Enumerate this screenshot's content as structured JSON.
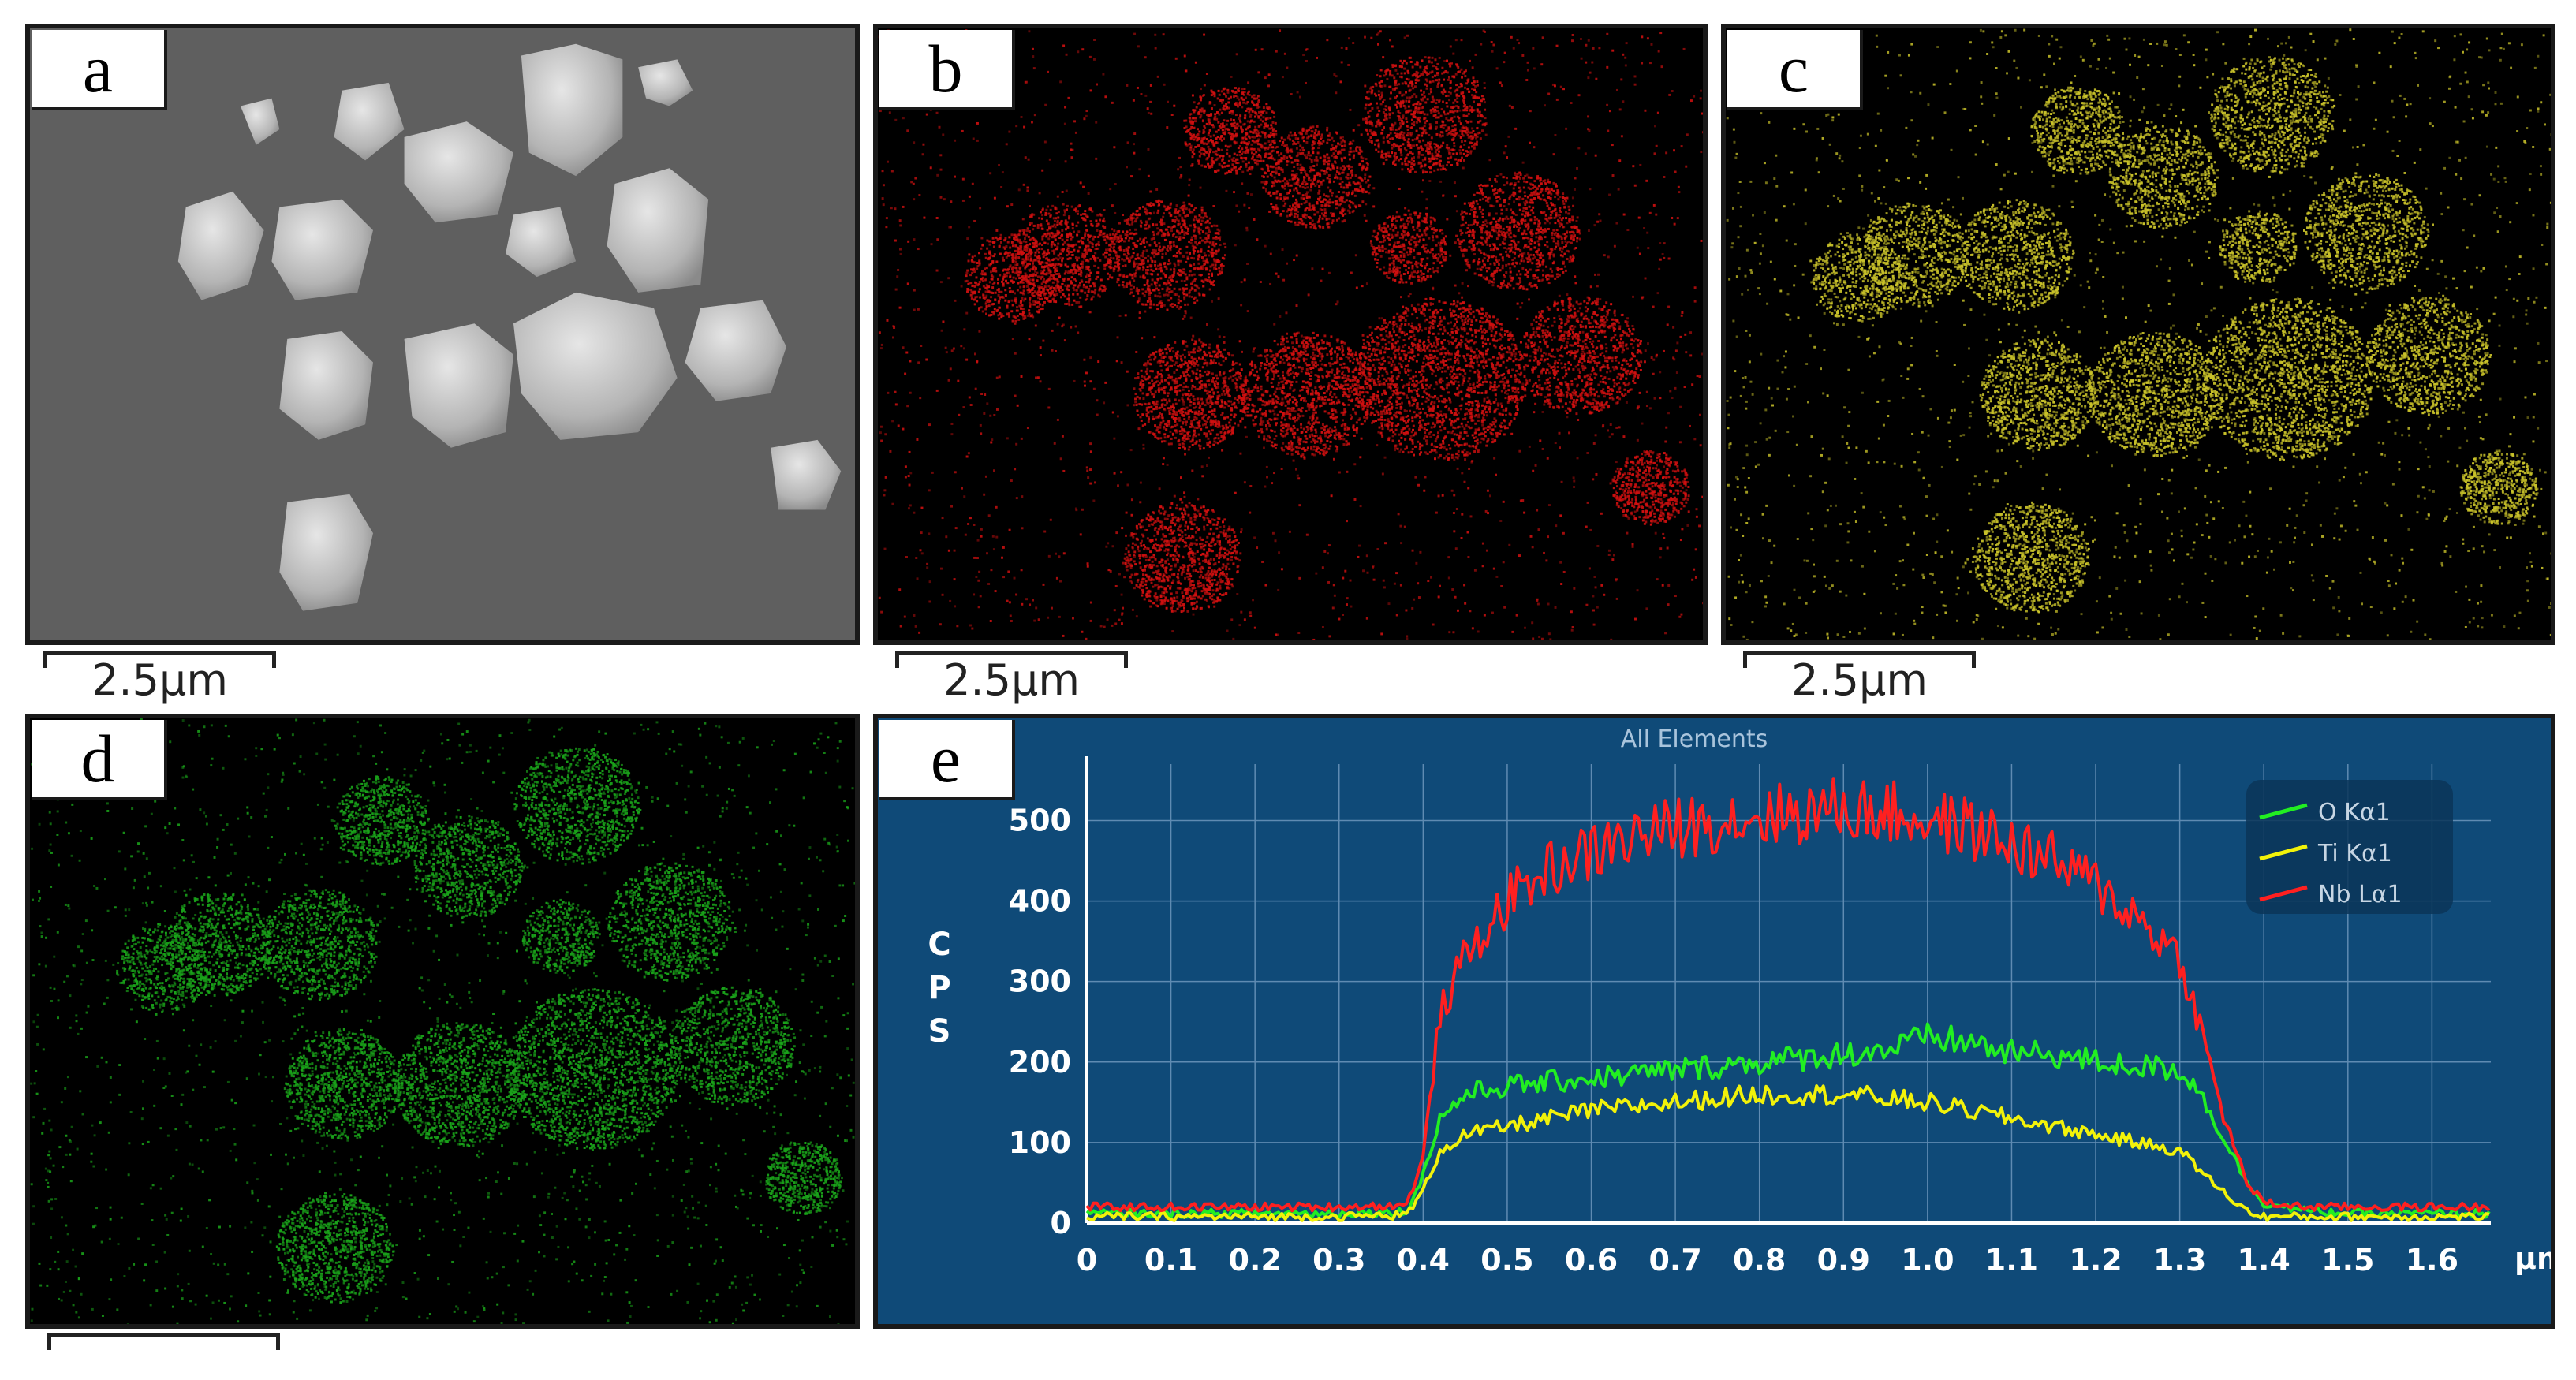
{
  "panels": {
    "a": {
      "label": "a",
      "scale": "2.5μm"
    },
    "b": {
      "label": "b",
      "scale": "2.5μm",
      "color": "#d01010"
    },
    "c": {
      "label": "c",
      "scale": "2.5μm",
      "color": "#c9c22a"
    },
    "d": {
      "label": "d",
      "color": "#1aa31a"
    },
    "e": {
      "label": "e"
    }
  },
  "chart_data": {
    "type": "line",
    "title": "All Elements",
    "ylabel": "CPS",
    "x_unit": "μm",
    "xlim": [
      0,
      1.67
    ],
    "ylim": [
      0,
      570
    ],
    "x_ticks": [
      "0",
      "0.1",
      "0.2",
      "0.3",
      "0.4",
      "0.5",
      "0.6",
      "0.7",
      "0.8",
      "0.9",
      "1.0",
      "1.1",
      "1.2",
      "1.3",
      "1.4",
      "1.5",
      "1.6"
    ],
    "y_ticks": [
      "0",
      "100",
      "200",
      "300",
      "400",
      "500"
    ],
    "grid": true,
    "legend_position": "top-right",
    "x": [
      0.0,
      0.1,
      0.2,
      0.3,
      0.38,
      0.4,
      0.42,
      0.45,
      0.5,
      0.55,
      0.6,
      0.65,
      0.7,
      0.75,
      0.8,
      0.85,
      0.9,
      0.95,
      1.0,
      1.05,
      1.1,
      1.15,
      1.2,
      1.25,
      1.3,
      1.32,
      1.35,
      1.38,
      1.4,
      1.45,
      1.5,
      1.6,
      1.67
    ],
    "series": [
      {
        "name": "O Kα1",
        "color": "#22ee22",
        "values": [
          12,
          12,
          12,
          12,
          14,
          60,
          130,
          160,
          170,
          175,
          180,
          185,
          190,
          195,
          200,
          205,
          210,
          215,
          230,
          225,
          210,
          210,
          200,
          195,
          190,
          170,
          110,
          50,
          25,
          15,
          12,
          12,
          12
        ]
      },
      {
        "name": "Ti Kα1",
        "color": "#f2f20a",
        "values": [
          8,
          8,
          8,
          8,
          10,
          40,
          90,
          110,
          120,
          130,
          140,
          145,
          150,
          155,
          160,
          160,
          160,
          155,
          150,
          140,
          130,
          120,
          110,
          100,
          90,
          70,
          40,
          15,
          8,
          8,
          8,
          8,
          8
        ]
      },
      {
        "name": "Nb Lα1",
        "color": "#ff2020",
        "values": [
          20,
          20,
          20,
          20,
          22,
          80,
          260,
          330,
          400,
          440,
          460,
          480,
          490,
          500,
          505,
          510,
          515,
          510,
          500,
          490,
          470,
          450,
          420,
          380,
          330,
          260,
          140,
          50,
          25,
          20,
          20,
          20,
          20
        ]
      }
    ]
  }
}
